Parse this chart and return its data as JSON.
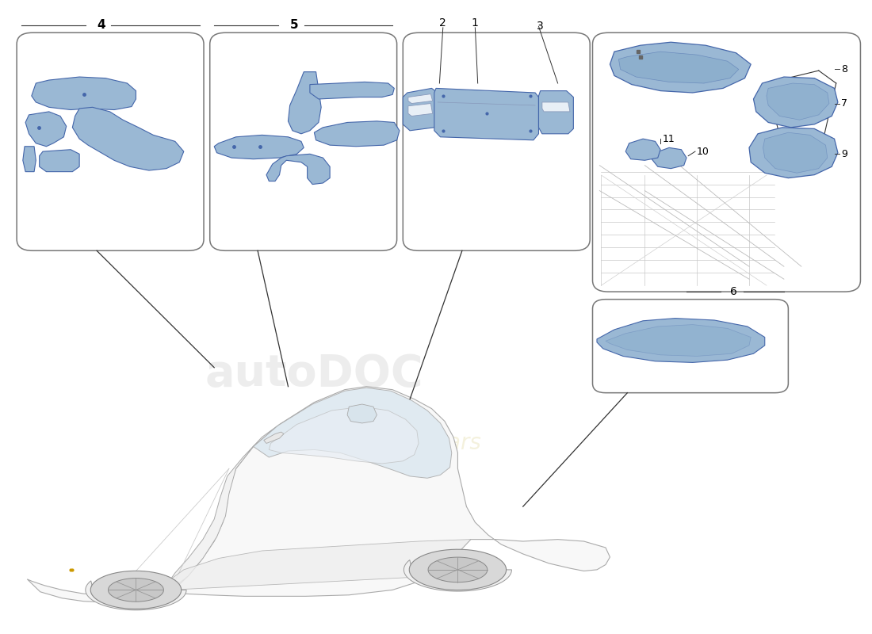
{
  "bg_color": "#ffffff",
  "part_color": "#9ab8d4",
  "part_edge_color": "#4466aa",
  "box_edge_color": "#777777",
  "line_color": "#333333",
  "label_fontsize": 11,
  "boxes": {
    "b4": [
      0.018,
      0.605,
      0.215,
      0.345
    ],
    "b5": [
      0.24,
      0.605,
      0.215,
      0.345
    ],
    "b123": [
      0.462,
      0.605,
      0.215,
      0.345
    ],
    "beng": [
      0.68,
      0.54,
      0.308,
      0.41
    ],
    "b6": [
      0.68,
      0.38,
      0.225,
      0.148
    ]
  }
}
